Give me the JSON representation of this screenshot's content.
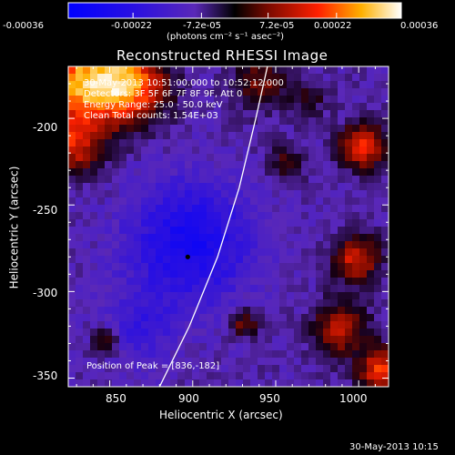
{
  "chart_data": {
    "type": "heatmap",
    "title": "Reconstructed RHESSI Image",
    "xlabel": "Heliocentric X (arcsec)",
    "ylabel": "Heliocentric Y (arcsec)",
    "xlim": [
      825,
      1018
    ],
    "ylim": [
      -355,
      -170
    ],
    "xticks": [
      "850",
      "900",
      "950",
      "1000"
    ],
    "yticks": [
      "-200",
      "-250",
      "-300",
      "-350"
    ],
    "xtick_values": [
      850,
      900,
      950,
      1000
    ],
    "ytick_values": [
      -200,
      -250,
      -300,
      -350
    ],
    "colorbar": {
      "range": [
        -0.00036,
        0.00036
      ],
      "tick_labels": [
        "-0.00036",
        "-0.00022",
        "-7.2e-05",
        "7.2e-05",
        "0.00022",
        "0.00036"
      ],
      "tick_values": [
        -0.00036,
        -0.00022,
        -7.2e-05,
        7.2e-05,
        0.00022,
        0.00036
      ],
      "units": "(photons cm⁻² s⁻¹ asec⁻²)",
      "colormap": "blue-purple-red-yellow-white"
    },
    "annotations": {
      "time": "30-May-2013 10:51:00.000 to 10:52:12.000",
      "detectors": "Detectors: 3F 5F 6F 7F 8F 9F, Att 0",
      "energy": "Energy Range: 25.0 - 50.0 keV",
      "clean": "Clean    Total counts: 1.54E+03",
      "peak": "Position of Peak = [836,-182]"
    },
    "peak": {
      "x": 836,
      "y": -182
    },
    "marker": {
      "x": 897,
      "y": -280
    },
    "limb_line": [
      [
        880,
        -355
      ],
      [
        898,
        -320
      ],
      [
        915,
        -280
      ],
      [
        928,
        -240
      ],
      [
        938,
        -200
      ],
      [
        945,
        -170
      ]
    ]
  },
  "footer": {
    "timestamp": "30-May-2013 10:15"
  },
  "colors": {
    "background": "#000000",
    "text": "#ffffff",
    "limb": "#ffffff"
  }
}
